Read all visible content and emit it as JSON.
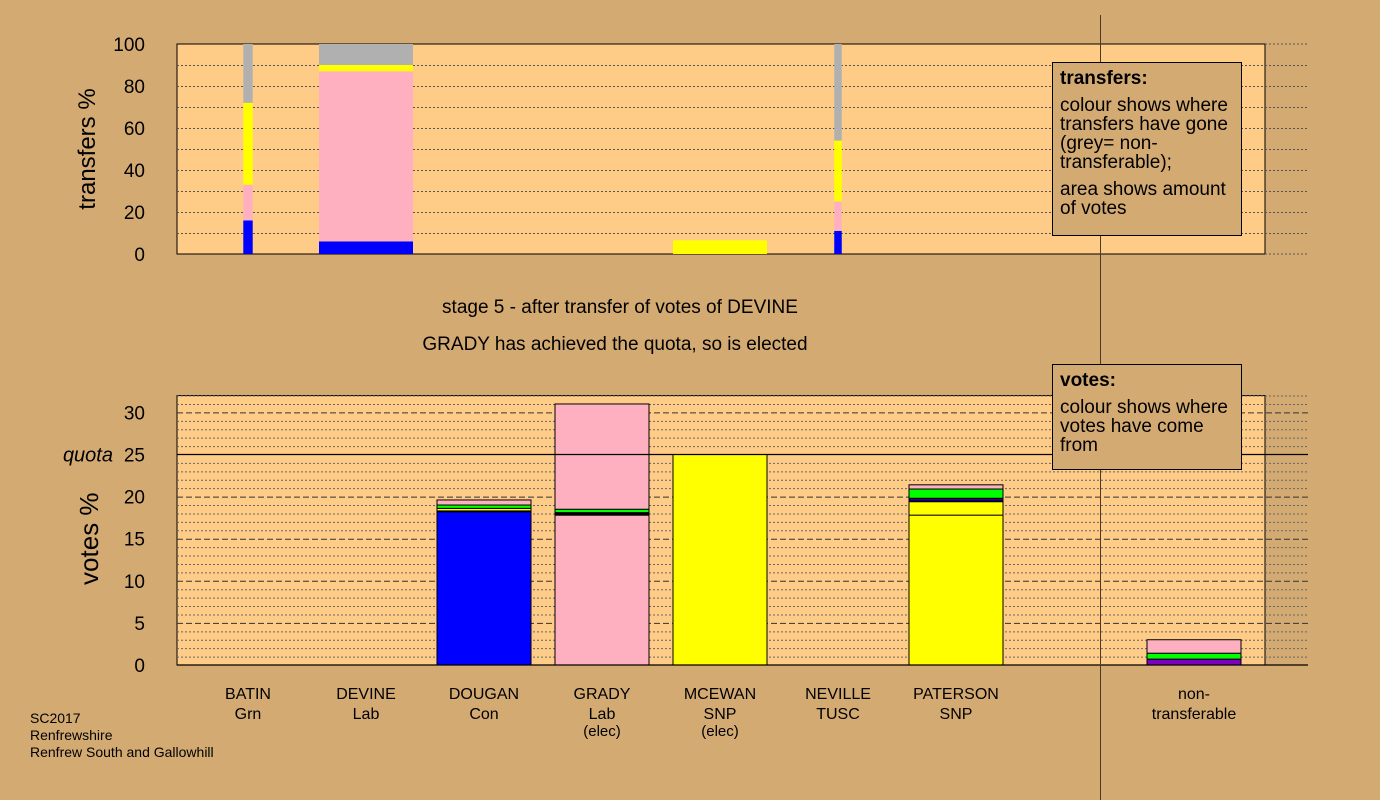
{
  "stage_title": "stage 5 - after transfer of votes of DEVINE",
  "elected_note": "GRADY has achieved the quota, so is elected",
  "footer": [
    "SC2017",
    "Renfrewshire",
    "Renfrew South and Gallowhill"
  ],
  "colors": {
    "background": "#d4aa73",
    "plot_bg": "#ffcc88",
    "Con": "#0000ff",
    "Lab": "#ffb0c0",
    "SNP": "#ffff00",
    "Grn": "#00ff00",
    "Other": "#8000c0",
    "nontransferable": "#b0b0b0"
  },
  "legend_transfers": {
    "title": "transfers:",
    "para1": "colour shows where transfers have gone (grey= non-transferable);",
    "para2": "area shows amount of votes"
  },
  "legend_votes": {
    "title": "votes:",
    "para1": "colour shows where votes have come from"
  },
  "chart_data": [
    {
      "type": "bar",
      "stacked": true,
      "ylabel": "transfers %",
      "ylim": [
        0,
        100
      ],
      "yticks": [
        0,
        20,
        40,
        60,
        80,
        100
      ],
      "grid": true,
      "categories": [
        "BATIN",
        "DEVINE",
        "DOUGAN",
        "GRADY",
        "MCEWAN",
        "NEVILLE",
        "PATERSON"
      ],
      "bars": [
        {
          "category": "BATIN",
          "width_share": 0.1,
          "segments": [
            {
              "party": "Con",
              "value": 16
            },
            {
              "party": "Lab",
              "value": 17
            },
            {
              "party": "SNP",
              "value": 39
            },
            {
              "party": "nontransferable",
              "value": 28
            }
          ]
        },
        {
          "category": "DEVINE",
          "width_share": 1.0,
          "segments": [
            {
              "party": "Con",
              "value": 6
            },
            {
              "party": "Lab",
              "value": 81
            },
            {
              "party": "SNP",
              "value": 3
            },
            {
              "party": "nontransferable",
              "value": 10
            }
          ]
        },
        {
          "category": "MCEWAN",
          "width_share": 1.0,
          "segments": [
            {
              "party": "SNP",
              "value": 6.5
            }
          ]
        },
        {
          "category": "NEVILLE",
          "width_share": 0.08,
          "segments": [
            {
              "party": "Con",
              "value": 11
            },
            {
              "party": "Lab",
              "value": 14
            },
            {
              "party": "SNP",
              "value": 29
            },
            {
              "party": "nontransferable",
              "value": 46
            }
          ]
        }
      ]
    },
    {
      "type": "bar",
      "stacked": true,
      "ylabel": "votes %",
      "ylim": [
        0,
        32
      ],
      "yticks": [
        0,
        5,
        10,
        15,
        20,
        25,
        30
      ],
      "quota": 25,
      "quota_label": "quota",
      "grid": true,
      "categories": [
        {
          "name": "BATIN",
          "party": "Grn",
          "note": ""
        },
        {
          "name": "DEVINE",
          "party": "Lab",
          "note": ""
        },
        {
          "name": "DOUGAN",
          "party": "Con",
          "note": ""
        },
        {
          "name": "GRADY",
          "party": "Lab",
          "note": "(elec)"
        },
        {
          "name": "MCEWAN",
          "party": "SNP",
          "note": "(elec)"
        },
        {
          "name": "NEVILLE",
          "party": "TUSC",
          "note": ""
        },
        {
          "name": "PATERSON",
          "party": "SNP",
          "note": ""
        }
      ],
      "nontransferable_label": "non-\ntransferable",
      "series": {
        "BATIN": [],
        "DEVINE": [],
        "DOUGAN": [
          {
            "party": "Con",
            "value": 18.2
          },
          {
            "party": "Other",
            "value": 0.1
          },
          {
            "party": "SNP",
            "value": 0.3
          },
          {
            "party": "Grn",
            "value": 0.4
          },
          {
            "party": "Lab",
            "value": 0.6
          }
        ],
        "GRADY": [
          {
            "party": "Lab",
            "value": 17.8
          },
          {
            "party": "Other",
            "value": 0.1
          },
          {
            "party": "Con",
            "value": 0.1
          },
          {
            "party": "SNP",
            "value": 0.1
          },
          {
            "party": "Grn",
            "value": 0.4
          },
          {
            "party": "Lab",
            "value": 12.5
          }
        ],
        "MCEWAN": [
          {
            "party": "SNP",
            "value": 25
          }
        ],
        "NEVILLE": [],
        "PATERSON": [
          {
            "party": "SNP",
            "value": 17.8
          },
          {
            "party": "SNP",
            "value": 1.6
          },
          {
            "party": "Con",
            "value": 0.2
          },
          {
            "party": "Other",
            "value": 0.2
          },
          {
            "party": "Grn",
            "value": 1.1
          },
          {
            "party": "Lab",
            "value": 0.5
          }
        ],
        "nontransferable": [
          {
            "party": "Other",
            "value": 0.7
          },
          {
            "party": "Grn",
            "value": 0.7
          },
          {
            "party": "Lab",
            "value": 1.6
          }
        ]
      }
    }
  ]
}
